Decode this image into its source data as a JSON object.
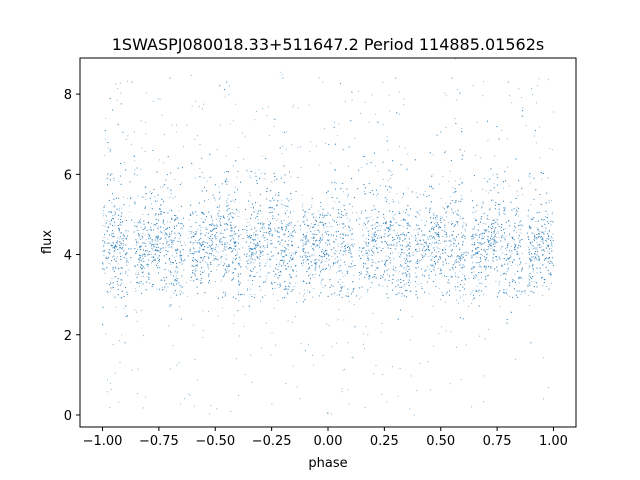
{
  "chart_data": {
    "type": "scatter",
    "title": "1SWASPJ080018.33+511647.2 Period 114885.01562s",
    "xlabel": "phase",
    "ylabel": "flux",
    "xlim": [
      -1.1,
      1.1
    ],
    "ylim": [
      -0.3,
      8.9
    ],
    "x_ticks": [
      -1.0,
      -0.75,
      -0.5,
      -0.25,
      0.0,
      0.25,
      0.5,
      0.75,
      1.0
    ],
    "x_tick_labels": [
      "−1.00",
      "−0.75",
      "−0.50",
      "−0.25",
      "0.00",
      "0.25",
      "0.50",
      "0.75",
      "1.00"
    ],
    "y_ticks": [
      0,
      2,
      4,
      6,
      8
    ],
    "y_tick_labels": [
      "0",
      "2",
      "4",
      "6",
      "8"
    ],
    "grid": false,
    "marker_color": "#1f77b4",
    "series": [
      {
        "phase_range": [
          -1.0,
          1.0
        ],
        "flux_core_range": [
          3.0,
          5.5
        ],
        "flux_extreme_range": [
          0.0,
          8.5
        ],
        "dip_phases": [
          -0.875,
          -0.625,
          -0.375,
          -0.125,
          0.125,
          0.375,
          0.625,
          0.875
        ],
        "dip_flux_floor": 2.9,
        "peak_flux_upper": 6.4,
        "points": [
          [
            -0.99,
            4.1
          ],
          [
            -0.95,
            5.9
          ],
          [
            -0.93,
            3.4
          ],
          [
            -0.9,
            1.8
          ],
          [
            -0.87,
            8.3
          ],
          [
            -0.82,
            4.0
          ],
          [
            -0.78,
            3.2
          ],
          [
            -0.74,
            4.4
          ],
          [
            -0.7,
            8.4
          ],
          [
            -0.65,
            5.2
          ],
          [
            -0.6,
            3.6
          ],
          [
            -0.56,
            6.4
          ],
          [
            -0.5,
            3.9
          ],
          [
            -0.45,
            8.3
          ],
          [
            -0.4,
            2.6
          ],
          [
            -0.35,
            4.2
          ],
          [
            -0.3,
            5.5
          ],
          [
            -0.25,
            3.3
          ],
          [
            -0.2,
            8.4
          ],
          [
            -0.15,
            4.6
          ],
          [
            -0.1,
            1.6
          ],
          [
            -0.05,
            3.8
          ],
          [
            0.0,
            0.05
          ],
          [
            0.03,
            5.8
          ],
          [
            0.08,
            4.1
          ],
          [
            0.12,
            2.2
          ],
          [
            0.17,
            3.5
          ],
          [
            0.22,
            4.8
          ],
          [
            0.27,
            6.1
          ],
          [
            0.3,
            8.4
          ],
          [
            0.35,
            3.1
          ],
          [
            0.4,
            4.5
          ],
          [
            0.45,
            5.7
          ],
          [
            0.5,
            3.6
          ],
          [
            0.55,
            8.4
          ],
          [
            0.6,
            2.4
          ],
          [
            0.65,
            4.3
          ],
          [
            0.7,
            3.2
          ],
          [
            0.75,
            6.0
          ],
          [
            0.8,
            8.3
          ],
          [
            0.85,
            3.9
          ],
          [
            0.9,
            1.8
          ],
          [
            0.95,
            4.7
          ],
          [
            0.99,
            3.5
          ]
        ]
      }
    ]
  }
}
